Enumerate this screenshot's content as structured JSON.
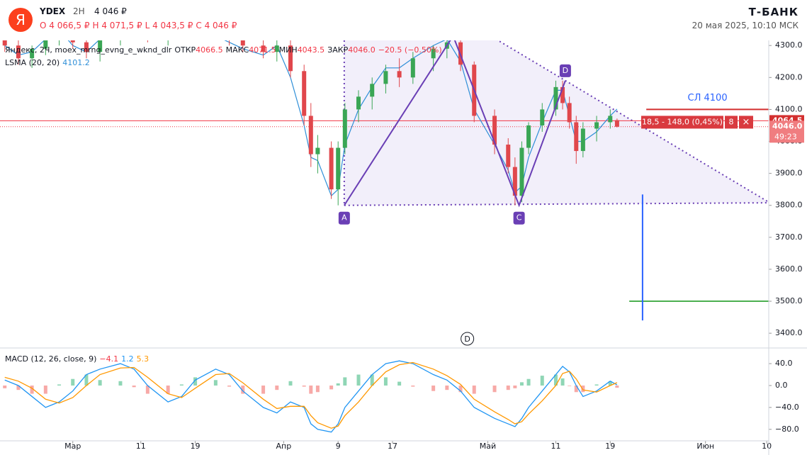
{
  "header": {
    "logo": "Я",
    "ticker": "YDEX",
    "interval": "2H",
    "price": "4 046 ₽",
    "ohlc": [
      "О 4 066,5 ₽",
      "Н 4 071,5 ₽",
      "L 4 043,5 ₽",
      "С 4 046 ₽"
    ],
    "brand": "Т-БАНК",
    "datetime": "20 мая 2025, 10:10 МСК"
  },
  "chart_data": [
    {
      "type": "candlestick",
      "legend": {
        "name": "Яндекс, 2Ч, moex_mrng_evng_e_wknd_dlr",
        "items": [
          [
            "ОТКР",
            "4066.5"
          ],
          [
            "МАКС",
            "4071.5"
          ],
          [
            "МИН",
            "4043.5"
          ],
          [
            "ЗАКР",
            "4046.0"
          ]
        ],
        "change": "−20.5 (−0.50%)"
      },
      "x": [
        -10,
        -8,
        -6,
        -4,
        -2,
        0,
        2,
        4,
        7,
        9,
        11,
        14,
        16,
        18,
        21,
        23,
        25,
        28,
        30,
        32,
        34,
        35,
        36,
        38,
        39,
        40,
        42,
        44,
        46,
        48,
        50,
        53,
        55,
        57,
        59,
        62,
        64,
        65,
        66,
        67,
        69,
        71,
        72,
        73,
        74,
        75,
        77,
        79,
        80
      ],
      "open": [
        4320,
        4300,
        4260,
        4290,
        4320,
        4350,
        4310,
        4280,
        4320,
        4370,
        4350,
        4330,
        4360,
        4380,
        4370,
        4340,
        4320,
        4300,
        4280,
        4300,
        4220,
        4080,
        3960,
        3980,
        3850,
        3980,
        4100,
        4140,
        4180,
        4220,
        4200,
        4260,
        4290,
        4310,
        4240,
        4080,
        3990,
        3920,
        3830,
        3980,
        4050,
        4100,
        4170,
        4120,
        4060,
        3970,
        4040,
        4060,
        4066.5
      ],
      "high": [
        4360,
        4330,
        4300,
        4340,
        4370,
        4380,
        4340,
        4330,
        4390,
        4400,
        4380,
        4370,
        4400,
        4410,
        4390,
        4360,
        4350,
        4330,
        4320,
        4320,
        4240,
        4120,
        4020,
        4000,
        4000,
        4120,
        4160,
        4200,
        4240,
        4260,
        4280,
        4300,
        4330,
        4320,
        4250,
        4100,
        4010,
        3950,
        4000,
        4060,
        4120,
        4190,
        4190,
        4140,
        4080,
        4060,
        4080,
        4100,
        4071.5
      ],
      "low": [
        4280,
        4240,
        4230,
        4270,
        4300,
        4290,
        4260,
        4250,
        4300,
        4330,
        4310,
        4300,
        4340,
        4350,
        4330,
        4300,
        4280,
        4260,
        4250,
        4200,
        4050,
        3920,
        3900,
        3820,
        3800,
        3960,
        4060,
        4100,
        4150,
        4170,
        4180,
        4220,
        4260,
        4220,
        4060,
        3960,
        3900,
        3800,
        3810,
        3960,
        4030,
        4080,
        4100,
        4040,
        3930,
        3950,
        4000,
        4040,
        4043.5
      ],
      "close": [
        4300,
        4260,
        4290,
        4320,
        4350,
        4310,
        4280,
        4320,
        4370,
        4350,
        4330,
        4360,
        4380,
        4370,
        4340,
        4320,
        4300,
        4280,
        4300,
        4220,
        4080,
        3960,
        3980,
        3850,
        3980,
        4100,
        4140,
        4180,
        4220,
        4200,
        4260,
        4290,
        4310,
        4240,
        4080,
        3990,
        3920,
        3830,
        3980,
        4050,
        4100,
        4170,
        4120,
        4060,
        3970,
        4040,
        4060,
        4080,
        4046
      ],
      "up_color": "#3aa655",
      "down_color": "#e0474c",
      "lsma": {
        "name": "LSMA (20, 20)",
        "last": "4101.2",
        "color": "#2f8fd8",
        "values": [
          4300,
          4270,
          4280,
          4320,
          4350,
          4300,
          4280,
          4320,
          4370,
          4340,
          4320,
          4360,
          4390,
          4360,
          4330,
          4310,
          4290,
          4270,
          4300,
          4200,
          4050,
          3950,
          3940,
          3830,
          3850,
          3990,
          4100,
          4170,
          4230,
          4230,
          4260,
          4300,
          4320,
          4250,
          4100,
          3990,
          3910,
          3840,
          3860,
          3950,
          4060,
          4160,
          4160,
          4080,
          4000,
          4000,
          4030,
          4080,
          4101.2
        ]
      },
      "pattern": {
        "color": "#6a3fb5",
        "points": [
          {
            "label": "A",
            "x": 39.9,
            "y": 3800
          },
          {
            "x": 55.9,
            "y": 4330
          },
          {
            "label": "C",
            "x": 65.6,
            "y": 3800
          },
          {
            "label": "D",
            "x": 72.4,
            "y": 4190
          }
        ]
      },
      "triangle": {
        "upper": [
          [
            62.2,
            4320
          ],
          [
            102.3,
            3810
          ]
        ],
        "lower": [
          [
            39.9,
            3800
          ],
          [
            102.3,
            3808
          ]
        ],
        "fill": "#ece8f8"
      },
      "levels": [
        {
          "label": "СЛ 4100",
          "value": 4100,
          "x": [
            84.3,
            102.3
          ],
          "color": "#d32f2f"
        },
        {
          "value": 3500,
          "x": [
            81.8,
            102.3
          ],
          "color": "#4caf50"
        }
      ],
      "ruler": {
        "x": 83.75,
        "y": [
          3834,
          3440
        ],
        "color": "#2962ff"
      },
      "last_price": {
        "value": 4064.5,
        "label": "4064.5"
      },
      "close_line": {
        "value": 4046,
        "label": "4046.0",
        "timer": "49:23"
      },
      "order": {
        "text": "18,5 - 148,0 (0,45%)",
        "qty": "8",
        "close": "×"
      },
      "event": {
        "label": "D",
        "x": 58
      },
      "xlim": [
        -10.7,
        102.3
      ],
      "ylim": [
        3356,
        4316
      ],
      "xticks": [
        {
          "value": 0,
          "label": "Мар"
        },
        {
          "value": 10,
          "label": "11"
        },
        {
          "value": 18,
          "label": "19"
        },
        {
          "value": 31,
          "label": "Апр"
        },
        {
          "value": 39,
          "label": "9"
        },
        {
          "value": 47,
          "label": "17"
        },
        {
          "value": 61,
          "label": "Май"
        },
        {
          "value": 71,
          "label": "11"
        },
        {
          "value": 79,
          "label": "19"
        },
        {
          "value": 93,
          "label": "Июн"
        },
        {
          "value": 102,
          "label": "10"
        }
      ],
      "yticks": [
        {
          "value": 4300,
          "label": "4300.0"
        },
        {
          "value": 4200,
          "label": "4200.0"
        },
        {
          "value": 4100,
          "label": "4100.0"
        },
        {
          "value": 4000,
          "label": "4000.0"
        },
        {
          "value": 3900,
          "label": "3900.0"
        },
        {
          "value": 3800,
          "label": "3800.0"
        },
        {
          "value": 3700,
          "label": "3700.0"
        },
        {
          "value": 3600,
          "label": "3600.0"
        },
        {
          "value": 3500,
          "label": "3500.0"
        },
        {
          "value": 3400,
          "label": "3400.0"
        }
      ]
    },
    {
      "type": "macd",
      "title": "MACD (12, 26, close, 9)",
      "last_labels": [
        "−4.1",
        "1.2",
        "5.3"
      ],
      "histogram": [
        -5,
        -8,
        -15,
        -15,
        2,
        12,
        20,
        10,
        8,
        -3,
        -15,
        -15,
        2,
        15,
        10,
        -2,
        -15,
        -15,
        -8,
        8,
        -2,
        -15,
        -12,
        -7,
        4,
        15,
        20,
        20,
        15,
        7,
        -2,
        -10,
        -8,
        -12,
        -15,
        -12,
        -8,
        -5,
        6,
        12,
        18,
        20,
        13,
        -1,
        -12,
        -12,
        2,
        8,
        -4.1
      ],
      "series": [
        {
          "name": "MACD",
          "color": "#2196f3",
          "values": [
            10,
            0,
            -20,
            -40,
            -30,
            -10,
            20,
            30,
            40,
            30,
            0,
            -30,
            -20,
            10,
            30,
            20,
            -10,
            -40,
            -50,
            -30,
            -40,
            -70,
            -80,
            -85,
            -70,
            -40,
            -10,
            20,
            40,
            45,
            40,
            20,
            10,
            -10,
            -40,
            -60,
            -70,
            -75,
            -60,
            -40,
            -10,
            20,
            35,
            25,
            0,
            -20,
            -10,
            8,
            1.2
          ]
        },
        {
          "name": "Signal",
          "color": "#ff9800",
          "values": [
            15,
            8,
            -5,
            -25,
            -32,
            -22,
            0,
            20,
            32,
            33,
            15,
            -15,
            -22,
            -5,
            20,
            22,
            5,
            -25,
            -42,
            -38,
            -38,
            -55,
            -68,
            -78,
            -74,
            -55,
            -30,
            0,
            25,
            38,
            42,
            30,
            18,
            2,
            -25,
            -48,
            -62,
            -70,
            -66,
            -52,
            -28,
            0,
            22,
            26,
            12,
            -8,
            -12,
            0,
            5.3
          ]
        }
      ],
      "pos_color": "#8fd6b5",
      "neg_color": "#f7a9a7",
      "ylim": [
        -101,
        66
      ],
      "yticks": [
        {
          "value": 40,
          "label": "40.0"
        },
        {
          "value": 0,
          "label": "0.0"
        },
        {
          "value": -40,
          "label": "−40.0"
        },
        {
          "value": -80,
          "label": "−80.0"
        }
      ]
    }
  ]
}
